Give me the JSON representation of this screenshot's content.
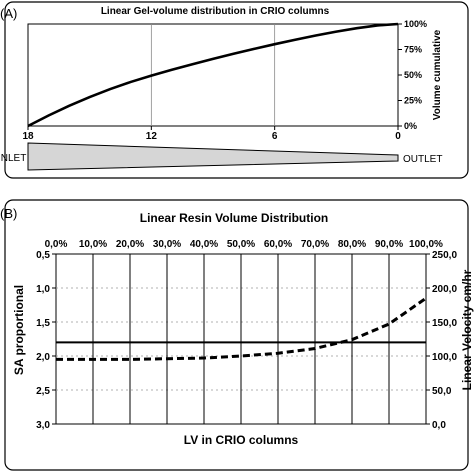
{
  "panel_a": {
    "label": "(A)",
    "inlet_label": "INLET",
    "outlet_label": "OUTLET"
  },
  "panel_b": {
    "label": "(B)"
  },
  "chart_data": [
    {
      "type": "line",
      "title": "Linear Gel-volume distribution  in CRIO columns",
      "xlabel": "",
      "ylabel": "Volume cumulative",
      "x_ticks": [
        "18",
        "12",
        "6",
        "0"
      ],
      "xlim": [
        18,
        0
      ],
      "y_ticks": [
        "0%",
        "25%",
        "50%",
        "75%",
        "100%"
      ],
      "ylim": [
        0,
        100
      ],
      "grid": "vertical",
      "series": [
        {
          "x": [
            18,
            17,
            16,
            15,
            14,
            13,
            12,
            11,
            10,
            9,
            8,
            7,
            6,
            5,
            4,
            3,
            2,
            1,
            0
          ],
          "y": [
            0,
            10.3,
            19.8,
            28.4,
            36.2,
            43.2,
            49.4,
            55.1,
            60.5,
            65.8,
            70.8,
            75.6,
            80.2,
            84.6,
            88.7,
            92.5,
            95.9,
            98.6,
            100
          ],
          "color": "#000000",
          "style": "solid"
        }
      ]
    },
    {
      "type": "line",
      "title": "Linear Resin Volume Distribution",
      "xlabel": "LV in CRIO columns",
      "ylabel": "SA proportional",
      "y2label": "Linear Velocity  cm/hr",
      "x_ticks": [
        "0,0%",
        "10,0%",
        "20,0%",
        "30,0%",
        "40,0%",
        "50,0%",
        "60,0%",
        "70,0%",
        "80,0%",
        "90,0%",
        "100,0%"
      ],
      "xlim": [
        0,
        100
      ],
      "y_ticks": [
        "0,5",
        "1,0",
        "1,5",
        "2,0",
        "2,5",
        "3,0"
      ],
      "ylim": [
        3.0,
        0.5
      ],
      "y2_ticks": [
        "0,0",
        "50,0",
        "100,0",
        "150,0",
        "200,0",
        "250,0"
      ],
      "y2lim": [
        0,
        250
      ],
      "grid": "both",
      "series": [
        {
          "name": "SA proportional",
          "axis": "left",
          "style": "solid",
          "color": "#000000",
          "x": [
            0,
            100
          ],
          "y": [
            1.8,
            1.8
          ]
        },
        {
          "name": "Linear Velocity",
          "axis": "right",
          "style": "dashed",
          "color": "#000000",
          "x": [
            0,
            10,
            20,
            30,
            40,
            50,
            60,
            70,
            80,
            90,
            100
          ],
          "y": [
            95,
            95,
            95,
            96,
            97,
            100,
            104,
            111,
            124,
            147,
            185
          ]
        }
      ]
    }
  ]
}
